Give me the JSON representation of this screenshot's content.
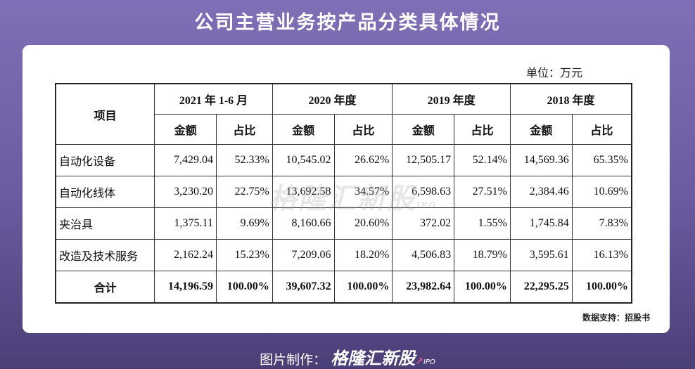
{
  "title": "公司主营业务按产品分类具体情况",
  "unit": "单位：万元",
  "table": {
    "item_header": "项目",
    "periods": [
      "2021 年 1-6 月",
      "2020 年度",
      "2019 年度",
      "2018 年度"
    ],
    "sub_headers": [
      "金额",
      "占比"
    ],
    "rows": [
      {
        "name": "自动化设备",
        "values": [
          "7,429.04",
          "52.33%",
          "10,545.02",
          "26.62%",
          "12,505.17",
          "52.14%",
          "14,569.36",
          "65.35%"
        ]
      },
      {
        "name": "自动化线体",
        "values": [
          "3,230.20",
          "22.75%",
          "13,692.58",
          "34.57%",
          "6,598.63",
          "27.51%",
          "2,384.46",
          "10.69%"
        ]
      },
      {
        "name": "夹治具",
        "values": [
          "1,375.11",
          "9.69%",
          "8,160.66",
          "20.60%",
          "372.02",
          "1.55%",
          "1,745.84",
          "7.83%"
        ]
      },
      {
        "name": "改造及技术服务",
        "values": [
          "2,162.24",
          "15.23%",
          "7,209.06",
          "18.20%",
          "4,506.83",
          "18.79%",
          "3,595.61",
          "16.13%"
        ]
      }
    ],
    "total": {
      "name": "合计",
      "values": [
        "14,196.59",
        "100.00%",
        "39,607.32",
        "100.00%",
        "23,982.64",
        "100.00%",
        "22,295.25",
        "100.00%"
      ]
    }
  },
  "watermark": "格隆汇新股",
  "watermark_ipo": "IPO",
  "source": "数据支持：招股书",
  "footer": {
    "label": "图片制作：",
    "brand": "格隆汇新股",
    "ipo": "IPO",
    "arrow_icon": "up-arrow-icon"
  }
}
